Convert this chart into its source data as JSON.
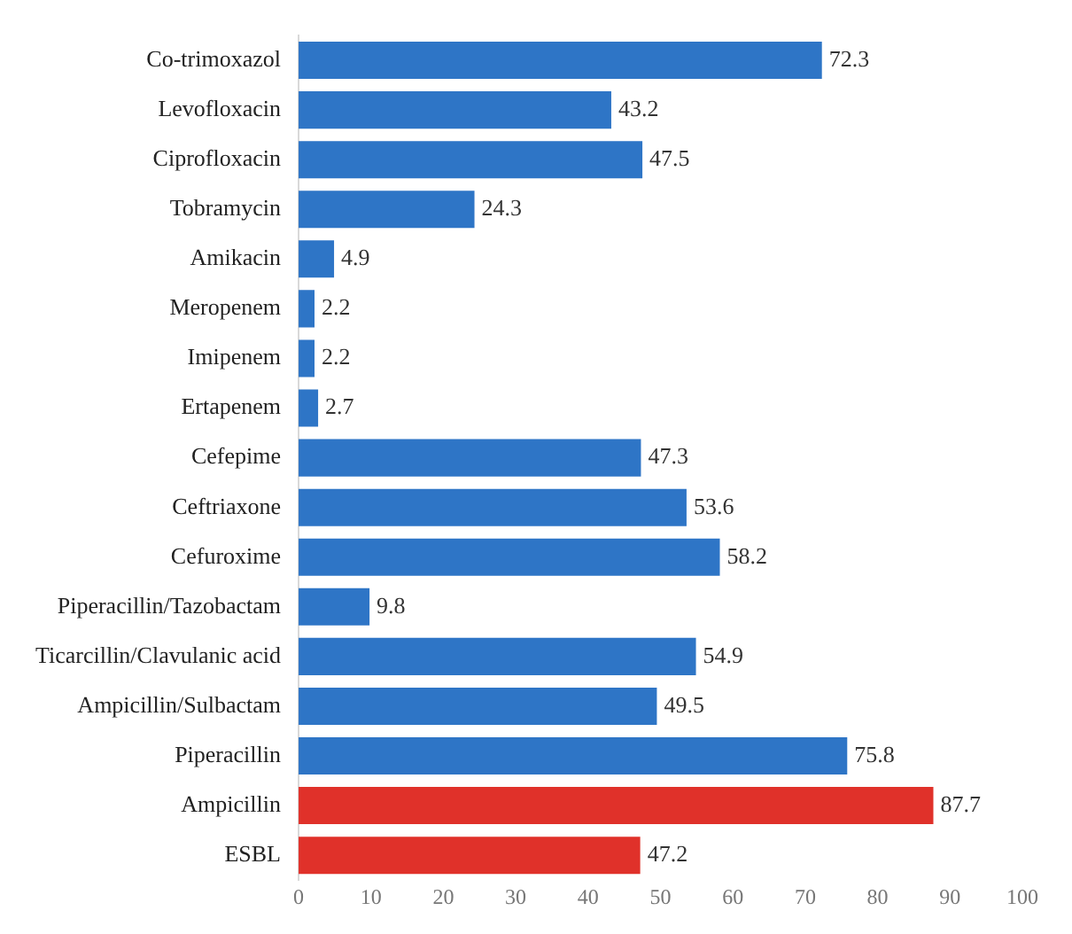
{
  "chart_data": {
    "type": "bar",
    "orientation": "horizontal",
    "categories": [
      "Co-trimoxazol",
      "Levofloxacin",
      "Ciprofloxacin",
      "Tobramycin",
      "Amikacin",
      "Meropenem",
      "Imipenem",
      "Ertapenem",
      "Cefepime",
      "Ceftriaxone",
      "Cefuroxime",
      "Piperacillin/Tazobactam",
      "Ticarcillin/Clavulanic acid",
      "Ampicillin/Sulbactam",
      "Piperacillin",
      "Ampicillin",
      "ESBL"
    ],
    "values": [
      72.3,
      43.2,
      47.5,
      24.3,
      4.9,
      2.2,
      2.2,
      2.7,
      47.3,
      53.6,
      58.2,
      9.8,
      54.9,
      49.5,
      75.8,
      87.7,
      47.2
    ],
    "colors": [
      "#2e75c6",
      "#2e75c6",
      "#2e75c6",
      "#2e75c6",
      "#2e75c6",
      "#2e75c6",
      "#2e75c6",
      "#2e75c6",
      "#2e75c6",
      "#2e75c6",
      "#2e75c6",
      "#2e75c6",
      "#2e75c6",
      "#2e75c6",
      "#2e75c6",
      "#e0312a",
      "#e0312a"
    ],
    "xlim": [
      0,
      100
    ],
    "xticks": [
      0,
      10,
      20,
      30,
      40,
      50,
      60,
      70,
      80,
      90,
      100
    ],
    "data_labels": true,
    "grid": false,
    "legend": false
  }
}
